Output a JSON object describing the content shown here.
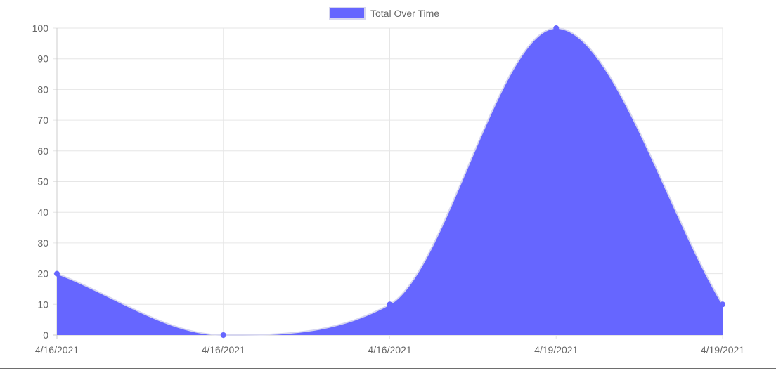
{
  "chart_data": {
    "type": "area",
    "legend": {
      "position": "top",
      "entries": [
        "Total Over Time"
      ]
    },
    "x": [
      "4/16/2021",
      "4/16/2021",
      "4/16/2021",
      "4/19/2021",
      "4/19/2021"
    ],
    "series": [
      {
        "name": "Total Over Time",
        "values": [
          20,
          0,
          10,
          100,
          10
        ]
      }
    ],
    "ylim": [
      0,
      100
    ],
    "yticks": [
      0,
      10,
      20,
      30,
      40,
      50,
      60,
      70,
      80,
      90,
      100
    ],
    "grid": true,
    "colors": {
      "fill": "#6666ff",
      "stroke": "#d6d6ef",
      "point": "#6666ff",
      "grid": "#e6e6e6",
      "axis": "#cccccc",
      "tick_text": "#666666"
    }
  }
}
